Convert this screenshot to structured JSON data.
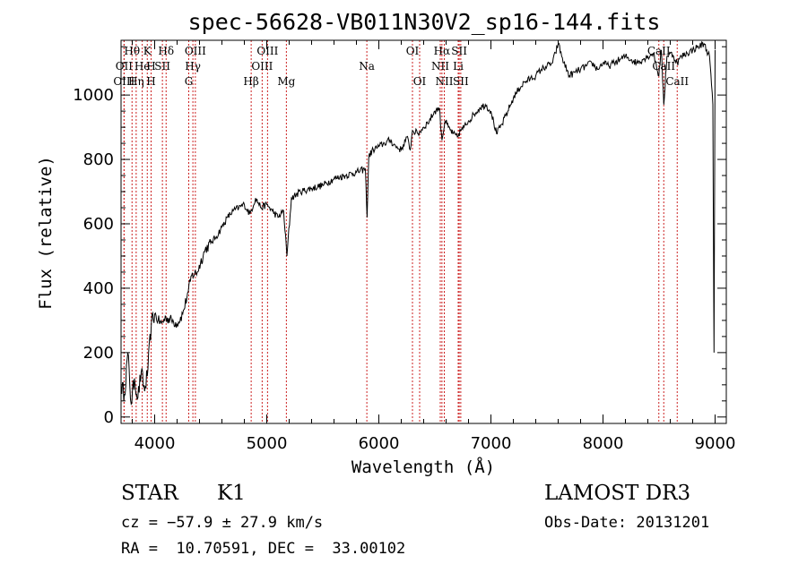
{
  "chart_data": {
    "type": "line",
    "title": "spec-56628-VB011N30V2_sp16-144.fits",
    "xlabel": "Wavelength (Å)",
    "ylabel": "Flux (relative)",
    "xlim": [
      3700,
      9100
    ],
    "ylim": [
      -20,
      1170
    ],
    "xticks": [
      4000,
      5000,
      6000,
      7000,
      8000,
      9000
    ],
    "yticks": [
      0,
      200,
      400,
      600,
      800,
      1000
    ],
    "series": [
      {
        "name": "spectrum",
        "x": [
          3700,
          3730,
          3760,
          3790,
          3820,
          3850,
          3880,
          3910,
          3940,
          3970,
          4000,
          4030,
          4060,
          4100,
          4150,
          4200,
          4250,
          4300,
          4330,
          4380,
          4450,
          4500,
          4550,
          4600,
          4650,
          4700,
          4750,
          4800,
          4850,
          4900,
          4950,
          5000,
          5050,
          5100,
          5150,
          5180,
          5220,
          5300,
          5400,
          5500,
          5600,
          5700,
          5800,
          5880,
          5895,
          5910,
          5950,
          6000,
          6050,
          6100,
          6150,
          6200,
          6250,
          6280,
          6300,
          6350,
          6400,
          6450,
          6500,
          6540,
          6563,
          6590,
          6620,
          6660,
          6700,
          6730,
          6760,
          6800,
          6850,
          6900,
          6950,
          7000,
          7050,
          7100,
          7150,
          7200,
          7250,
          7300,
          7350,
          7400,
          7450,
          7500,
          7550,
          7600,
          7650,
          7700,
          7750,
          7800,
          7850,
          7900,
          7950,
          8000,
          8050,
          8100,
          8150,
          8200,
          8250,
          8300,
          8350,
          8400,
          8450,
          8498,
          8520,
          8542,
          8570,
          8600,
          8630,
          8662,
          8700,
          8750,
          8800,
          8850,
          8900,
          8950,
          8980,
          8990,
          9000
        ],
        "values": [
          100,
          70,
          200,
          40,
          120,
          60,
          140,
          80,
          150,
          290,
          320,
          300,
          290,
          310,
          300,
          290,
          320,
          390,
          440,
          450,
          520,
          540,
          560,
          590,
          620,
          640,
          650,
          660,
          630,
          680,
          650,
          660,
          640,
          620,
          640,
          500,
          680,
          700,
          710,
          720,
          740,
          750,
          760,
          770,
          620,
          810,
          830,
          840,
          850,
          860,
          840,
          830,
          870,
          830,
          890,
          880,
          900,
          920,
          950,
          960,
          860,
          920,
          900,
          880,
          870,
          890,
          900,
          920,
          940,
          960,
          970,
          950,
          880,
          910,
          950,
          990,
          1020,
          1040,
          1050,
          1060,
          1080,
          1090,
          1100,
          1160,
          1100,
          1060,
          1070,
          1080,
          1090,
          1100,
          1080,
          1100,
          1090,
          1100,
          1110,
          1120,
          1110,
          1100,
          1110,
          1120,
          1130,
          1060,
          1140,
          970,
          1120,
          1130,
          1120,
          1100,
          1120,
          1130,
          1140,
          1150,
          1160,
          1120,
          970,
          200,
          1140
        ]
      }
    ],
    "line_markers": [
      {
        "name": "Hθ",
        "x": 3798,
        "row": 0
      },
      {
        "name": "K",
        "x": 3934,
        "row": 0
      },
      {
        "name": "Hδ",
        "x": 4102,
        "row": 0
      },
      {
        "name": "OIII",
        "x": 4363,
        "row": 0
      },
      {
        "name": "OIII",
        "x": 5007,
        "row": 0
      },
      {
        "name": "OI",
        "x": 6300,
        "row": 0
      },
      {
        "name": "Hα",
        "x": 6563,
        "row": 0
      },
      {
        "name": "SII",
        "x": 6717,
        "row": 0
      },
      {
        "name": "CaII",
        "x": 8498,
        "row": 0
      },
      {
        "name": "OII",
        "x": 3727,
        "row": 1
      },
      {
        "name": "He",
        "x": 3889,
        "row": 1
      },
      {
        "name": "H",
        "x": 3968,
        "row": 1
      },
      {
        "name": "SII",
        "x": 4069,
        "row": 1
      },
      {
        "name": "Hγ",
        "x": 4341,
        "row": 1
      },
      {
        "name": "OIII",
        "x": 4959,
        "row": 1
      },
      {
        "name": "Na",
        "x": 5893,
        "row": 1
      },
      {
        "name": "NII",
        "x": 6548,
        "row": 1
      },
      {
        "name": "Li",
        "x": 6708,
        "row": 1
      },
      {
        "name": "CaII",
        "x": 8542,
        "row": 1
      },
      {
        "name": "OIII",
        "x": 3727,
        "row": 2
      },
      {
        "name": "Hη",
        "x": 3835,
        "row": 2
      },
      {
        "name": "H",
        "x": 3968,
        "row": 2
      },
      {
        "name": "G",
        "x": 4304,
        "row": 2
      },
      {
        "name": "Hβ",
        "x": 4861,
        "row": 2
      },
      {
        "name": "Mg",
        "x": 5175,
        "row": 2
      },
      {
        "name": "OI",
        "x": 6364,
        "row": 2
      },
      {
        "name": "NII",
        "x": 6584,
        "row": 2
      },
      {
        "name": "SII",
        "x": 6731,
        "row": 2
      },
      {
        "name": "CaII",
        "x": 8662,
        "row": 2
      }
    ]
  },
  "info": {
    "object_class": "STAR",
    "subclass": "K1",
    "survey": "LAMOST DR3",
    "cz": "cz = −57.9 ± 27.9 km/s",
    "obs_date": "Obs-Date: 20131201",
    "coords": "RA =  10.70591, DEC =  33.00102"
  }
}
